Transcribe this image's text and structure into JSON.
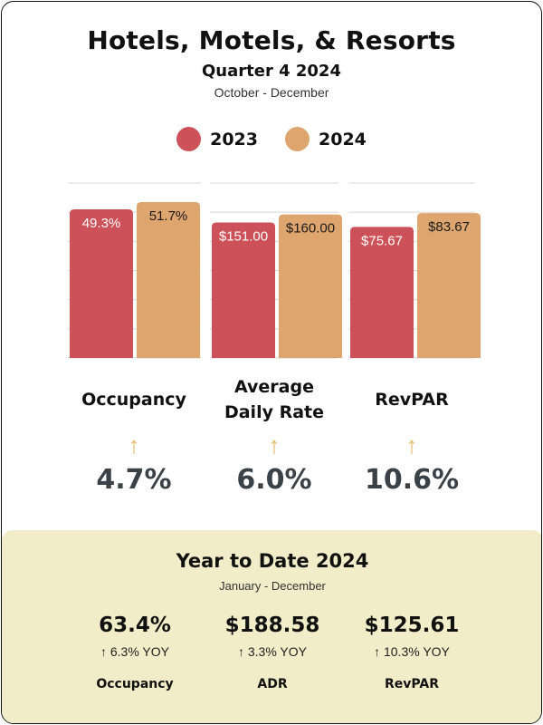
{
  "header": {
    "title": "Hotels, Motels, & Resorts",
    "subtitle": "Quarter 4 2024",
    "period": "October - December"
  },
  "colors": {
    "y2023": "#cc5158",
    "y2024": "#dea56f",
    "arrow": "#e0b860",
    "ytd_bg": "#f0edc8"
  },
  "chart_data": {
    "type": "bar",
    "legend_position": "top",
    "series": [
      {
        "name": "2023",
        "values": [
          49.3,
          151.0,
          75.67
        ],
        "labels": [
          "49.3%",
          "$151.00",
          "$75.67"
        ]
      },
      {
        "name": "2024",
        "values": [
          51.7,
          160.0,
          83.67
        ],
        "labels": [
          "51.7%",
          "$160.00",
          "$83.67"
        ]
      }
    ],
    "groups": [
      {
        "label_lines": [
          "Occupancy"
        ],
        "change_icon": "up-arrow-icon",
        "change_arrow": "↑",
        "change": "4.7%"
      },
      {
        "label_lines": [
          "Average",
          "Daily Rate"
        ],
        "change_icon": "up-arrow-icon",
        "change_arrow": "↑",
        "change": "6.0%"
      },
      {
        "label_lines": [
          "RevPAR"
        ],
        "change_icon": "up-arrow-icon",
        "change_arrow": "↑",
        "change": "10.6%"
      }
    ]
  },
  "ytd": {
    "title": "Year to Date 2024",
    "period": "January - December",
    "items": [
      {
        "value": "63.4%",
        "yoy": "↑  6.3% YOY",
        "label": "Occupancy"
      },
      {
        "value": "$188.58",
        "yoy": "↑  3.3% YOY",
        "label": "ADR"
      },
      {
        "value": "$125.61",
        "yoy": "↑ 10.3% YOY",
        "label": "RevPAR"
      }
    ]
  }
}
